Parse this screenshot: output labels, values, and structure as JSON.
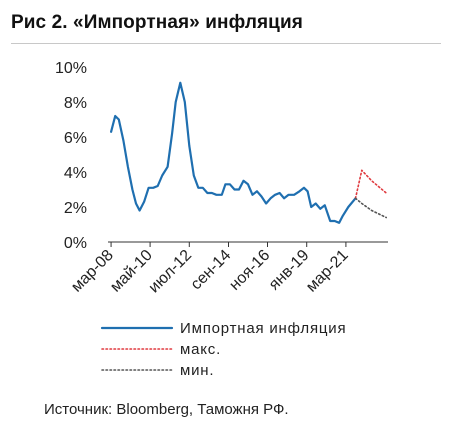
{
  "title": "Рис 2. «Импортная» инфляция",
  "source": "Источник: Bloomberg, Таможня РФ.",
  "chart_data": {
    "type": "line",
    "title": "Рис 2. «Импортная» инфляция",
    "ylim": [
      0,
      10
    ],
    "y_ticks": [
      "0%",
      "2%",
      "4%",
      "6%",
      "8%",
      "10%"
    ],
    "y_tick_values": [
      0,
      2,
      4,
      6,
      8,
      10
    ],
    "xlim": [
      2008.0,
      2023.5
    ],
    "x_ticks": [
      "мар-08",
      "май-10",
      "июл-12",
      "сен-14",
      "ноя-16",
      "янв-19",
      "мар-21"
    ],
    "x_tick_values": [
      2008.17,
      2010.33,
      2012.5,
      2014.67,
      2016.83,
      2019.0,
      2021.17
    ],
    "grid": false,
    "legend_position": "bottom",
    "series": [
      {
        "name": "Импортная инфляция",
        "color": "#1f6fb0",
        "style": "solid",
        "points": [
          [
            2008.17,
            6.3
          ],
          [
            2008.4,
            7.2
          ],
          [
            2008.6,
            7.0
          ],
          [
            2008.85,
            5.8
          ],
          [
            2009.1,
            4.3
          ],
          [
            2009.35,
            3.0
          ],
          [
            2009.55,
            2.2
          ],
          [
            2009.75,
            1.8
          ],
          [
            2010.0,
            2.3
          ],
          [
            2010.25,
            3.1
          ],
          [
            2010.5,
            3.1
          ],
          [
            2010.75,
            3.2
          ],
          [
            2011.0,
            3.8
          ],
          [
            2011.3,
            4.3
          ],
          [
            2011.55,
            6.2
          ],
          [
            2011.75,
            8.0
          ],
          [
            2012.0,
            9.1
          ],
          [
            2012.25,
            8.0
          ],
          [
            2012.5,
            5.5
          ],
          [
            2012.75,
            3.8
          ],
          [
            2013.0,
            3.1
          ],
          [
            2013.25,
            3.1
          ],
          [
            2013.5,
            2.8
          ],
          [
            2013.75,
            2.8
          ],
          [
            2014.0,
            2.7
          ],
          [
            2014.3,
            2.7
          ],
          [
            2014.5,
            3.3
          ],
          [
            2014.75,
            3.3
          ],
          [
            2015.0,
            3.0
          ],
          [
            2015.25,
            3.0
          ],
          [
            2015.5,
            3.5
          ],
          [
            2015.75,
            3.3
          ],
          [
            2016.0,
            2.7
          ],
          [
            2016.25,
            2.9
          ],
          [
            2016.5,
            2.6
          ],
          [
            2016.75,
            2.2
          ],
          [
            2017.0,
            2.5
          ],
          [
            2017.25,
            2.7
          ],
          [
            2017.5,
            2.8
          ],
          [
            2017.75,
            2.5
          ],
          [
            2018.0,
            2.7
          ],
          [
            2018.3,
            2.7
          ],
          [
            2018.6,
            2.9
          ],
          [
            2018.85,
            3.1
          ],
          [
            2019.05,
            2.9
          ],
          [
            2019.25,
            2.0
          ],
          [
            2019.5,
            2.2
          ],
          [
            2019.75,
            1.9
          ],
          [
            2020.0,
            2.1
          ],
          [
            2020.3,
            1.2
          ],
          [
            2020.55,
            1.2
          ],
          [
            2020.8,
            1.1
          ],
          [
            2021.0,
            1.5
          ],
          [
            2021.3,
            2.0
          ],
          [
            2021.7,
            2.5
          ]
        ]
      },
      {
        "name": "макс.",
        "color": "#e0393e",
        "style": "dotted",
        "points": [
          [
            2021.7,
            2.5
          ],
          [
            2022.05,
            4.1
          ],
          [
            2022.6,
            3.5
          ],
          [
            2023.4,
            2.8
          ]
        ]
      },
      {
        "name": "мин.",
        "color": "#555555",
        "style": "dotted",
        "points": [
          [
            2021.7,
            2.5
          ],
          [
            2022.05,
            2.2
          ],
          [
            2022.6,
            1.8
          ],
          [
            2023.4,
            1.4
          ]
        ]
      }
    ]
  }
}
